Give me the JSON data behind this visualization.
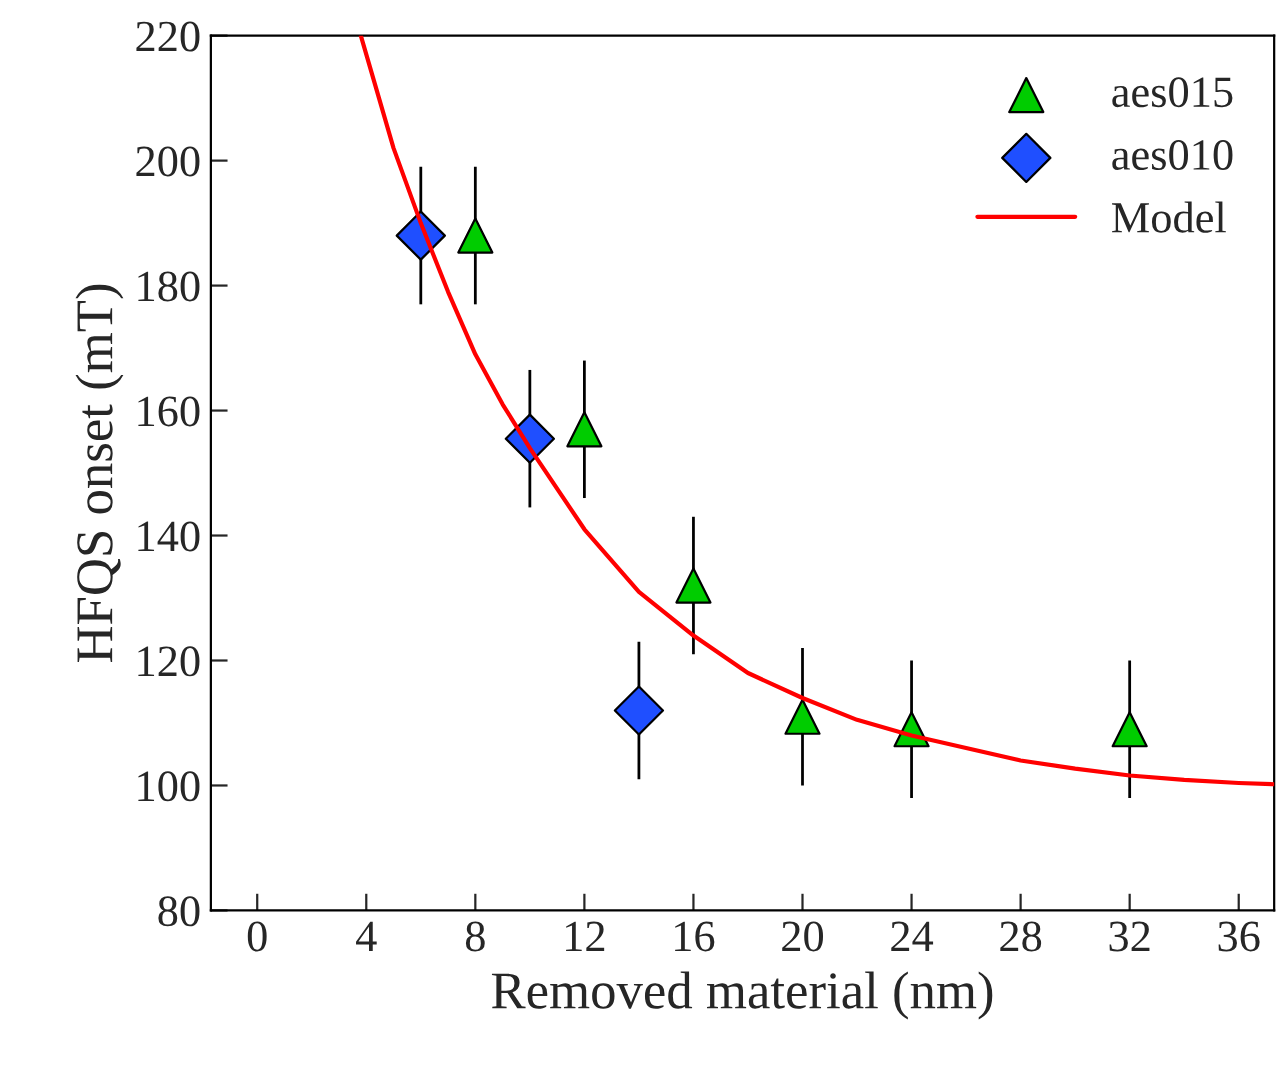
{
  "chart_data": {
    "type": "scatter",
    "xlabel": "Removed material (nm)",
    "ylabel": "HFQS onset (mT)",
    "xlim": [
      -1.7,
      37.3
    ],
    "xticks": [
      0,
      4,
      8,
      12,
      16,
      20,
      24,
      28,
      32,
      36
    ],
    "ylim": [
      80,
      220
    ],
    "yticks": [
      80,
      100,
      120,
      140,
      160,
      180,
      200,
      220
    ],
    "grid": false,
    "legend": "top right",
    "series": [
      {
        "name": "aes015",
        "marker": "triangle",
        "color": "#00cc00",
        "x": [
          8,
          12,
          16,
          20,
          24,
          32
        ],
        "values": [
          188,
          157,
          132,
          111,
          109,
          109
        ],
        "errors": [
          11,
          11,
          11,
          11,
          11,
          11
        ]
      },
      {
        "name": "aes010",
        "marker": "diamond",
        "color": "#1f4fff",
        "x": [
          6,
          10,
          14
        ],
        "values": [
          188,
          155.5,
          112
        ],
        "errors": [
          11,
          11,
          11
        ]
      },
      {
        "name": "Model",
        "type": "line",
        "marker": "none",
        "line_style": "solid",
        "color": "#ff0000",
        "x": [
          3.8,
          5,
          6,
          7,
          8,
          9,
          10,
          12,
          14,
          16,
          18,
          20,
          22,
          24,
          26,
          28,
          30,
          32,
          34,
          36,
          37.3
        ],
        "values": [
          220,
          202,
          190,
          179,
          169,
          161,
          154,
          141,
          131,
          124,
          118,
          114,
          110.5,
          108,
          106,
          104,
          102.7,
          101.6,
          100.9,
          100.4,
          100.2
        ]
      }
    ]
  }
}
